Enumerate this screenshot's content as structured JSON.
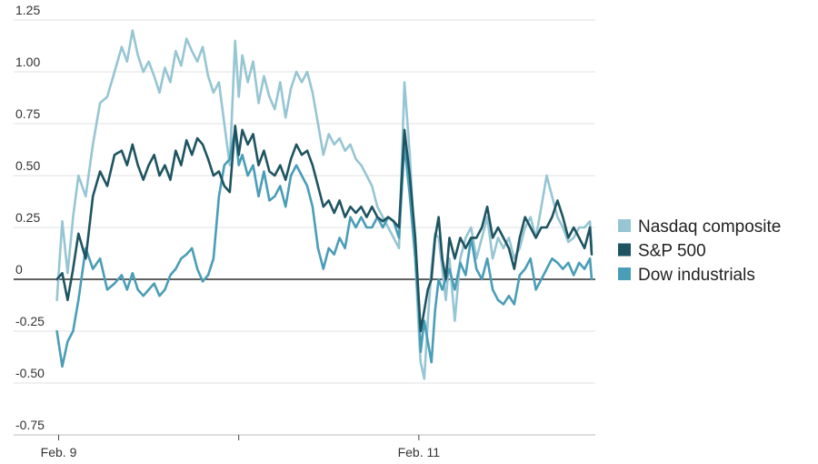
{
  "chart_data": {
    "type": "line",
    "ylim": [
      -0.75,
      1.25
    ],
    "y_ticks": [
      {
        "value": 1.25,
        "label": "1.25"
      },
      {
        "value": 1.0,
        "label": "1.00"
      },
      {
        "value": 0.75,
        "label": "0.75"
      },
      {
        "value": 0.5,
        "label": "0.50"
      },
      {
        "value": 0.25,
        "label": "0.25"
      },
      {
        "value": 0,
        "label": "0"
      },
      {
        "value": -0.25,
        "label": "-0.25"
      },
      {
        "value": -0.5,
        "label": "-0.50"
      },
      {
        "value": -0.75,
        "label": "-0.75"
      }
    ],
    "x_ticks": [
      {
        "value": 0,
        "label": "Feb. 9"
      },
      {
        "value": 1,
        "label": ""
      },
      {
        "value": 2,
        "label": "Feb. 11"
      }
    ],
    "xlim": [
      -0.25,
      2.98
    ],
    "grid": true,
    "legend_position": "right",
    "series": [
      {
        "name": "Nasdaq composite",
        "color": "#96c5d3",
        "x": [
          -0.01,
          0.02,
          0.05,
          0.08,
          0.11,
          0.15,
          0.19,
          0.23,
          0.27,
          0.31,
          0.35,
          0.38,
          0.41,
          0.44,
          0.47,
          0.5,
          0.53,
          0.56,
          0.59,
          0.62,
          0.65,
          0.68,
          0.71,
          0.74,
          0.77,
          0.8,
          0.83,
          0.86,
          0.89,
          0.92,
          0.95,
          0.98,
          1.0,
          1.02,
          1.05,
          1.08,
          1.11,
          1.14,
          1.17,
          1.2,
          1.23,
          1.26,
          1.29,
          1.32,
          1.35,
          1.38,
          1.41,
          1.44,
          1.47,
          1.5,
          1.53,
          1.56,
          1.59,
          1.62,
          1.65,
          1.68,
          1.71,
          1.74,
          1.77,
          1.8,
          1.83,
          1.86,
          1.89,
          1.92,
          1.95,
          1.98,
          2.0,
          2.01,
          2.03,
          2.05,
          2.07,
          2.09,
          2.11,
          2.13,
          2.15,
          2.17,
          2.2,
          2.23,
          2.26,
          2.29,
          2.32,
          2.35,
          2.38,
          2.41,
          2.44,
          2.47,
          2.5,
          2.53,
          2.56,
          2.59,
          2.62,
          2.65,
          2.68,
          2.71,
          2.74,
          2.77,
          2.8,
          2.83,
          2.86,
          2.89,
          2.92,
          2.95,
          2.96
        ],
        "y": [
          -0.1,
          0.28,
          0.03,
          0.3,
          0.5,
          0.4,
          0.65,
          0.85,
          0.88,
          1.0,
          1.12,
          1.05,
          1.2,
          1.08,
          1.0,
          1.05,
          0.98,
          0.9,
          1.02,
          0.95,
          1.1,
          1.03,
          1.16,
          1.1,
          1.05,
          1.12,
          0.98,
          0.9,
          0.95,
          0.75,
          0.55,
          1.15,
          0.88,
          1.08,
          0.95,
          1.05,
          0.85,
          0.98,
          0.88,
          0.82,
          0.95,
          0.78,
          0.92,
          1.0,
          0.95,
          1.0,
          0.9,
          0.75,
          0.6,
          0.7,
          0.65,
          0.68,
          0.62,
          0.65,
          0.58,
          0.55,
          0.5,
          0.45,
          0.35,
          0.3,
          0.25,
          0.2,
          0.15,
          0.95,
          0.6,
          0.1,
          -0.25,
          -0.4,
          -0.48,
          -0.2,
          0.05,
          0.22,
          0.2,
          0.05,
          -0.1,
          0.1,
          -0.2,
          0.1,
          0.2,
          0.25,
          0.1,
          0.2,
          0.3,
          0.1,
          0.2,
          0.15,
          0.2,
          0.1,
          0.15,
          0.25,
          0.3,
          0.2,
          0.35,
          0.5,
          0.4,
          0.3,
          0.25,
          0.18,
          0.2,
          0.25,
          0.25,
          0.28,
          0.15
        ]
      },
      {
        "name": "S&P 500",
        "color": "#1e5461",
        "x": [
          -0.01,
          0.02,
          0.05,
          0.08,
          0.11,
          0.15,
          0.19,
          0.23,
          0.27,
          0.31,
          0.35,
          0.38,
          0.41,
          0.44,
          0.47,
          0.5,
          0.53,
          0.56,
          0.59,
          0.62,
          0.65,
          0.68,
          0.71,
          0.74,
          0.77,
          0.8,
          0.83,
          0.86,
          0.89,
          0.92,
          0.95,
          0.98,
          1.0,
          1.02,
          1.05,
          1.08,
          1.11,
          1.14,
          1.17,
          1.2,
          1.23,
          1.26,
          1.29,
          1.32,
          1.35,
          1.38,
          1.41,
          1.44,
          1.47,
          1.5,
          1.53,
          1.56,
          1.59,
          1.62,
          1.65,
          1.68,
          1.71,
          1.74,
          1.77,
          1.8,
          1.83,
          1.86,
          1.89,
          1.92,
          1.95,
          1.98,
          2.0,
          2.01,
          2.03,
          2.05,
          2.07,
          2.09,
          2.11,
          2.13,
          2.15,
          2.17,
          2.2,
          2.23,
          2.26,
          2.29,
          2.32,
          2.35,
          2.38,
          2.41,
          2.44,
          2.47,
          2.5,
          2.53,
          2.56,
          2.59,
          2.62,
          2.65,
          2.68,
          2.71,
          2.74,
          2.77,
          2.8,
          2.83,
          2.86,
          2.89,
          2.92,
          2.95,
          2.96
        ],
        "y": [
          0.0,
          0.03,
          -0.1,
          0.05,
          0.22,
          0.1,
          0.4,
          0.52,
          0.45,
          0.6,
          0.62,
          0.55,
          0.65,
          0.55,
          0.48,
          0.55,
          0.6,
          0.5,
          0.55,
          0.48,
          0.62,
          0.55,
          0.67,
          0.6,
          0.68,
          0.65,
          0.58,
          0.5,
          0.52,
          0.45,
          0.42,
          0.74,
          0.6,
          0.72,
          0.65,
          0.7,
          0.55,
          0.62,
          0.52,
          0.5,
          0.55,
          0.48,
          0.58,
          0.65,
          0.6,
          0.62,
          0.55,
          0.45,
          0.35,
          0.38,
          0.32,
          0.38,
          0.3,
          0.35,
          0.32,
          0.35,
          0.3,
          0.35,
          0.3,
          0.28,
          0.3,
          0.28,
          0.25,
          0.72,
          0.5,
          0.2,
          -0.1,
          -0.25,
          -0.15,
          -0.05,
          0.0,
          0.2,
          0.3,
          0.1,
          0.0,
          0.2,
          0.1,
          0.2,
          0.15,
          0.2,
          0.2,
          0.25,
          0.35,
          0.2,
          0.25,
          0.2,
          0.15,
          0.05,
          0.2,
          0.3,
          0.25,
          0.2,
          0.25,
          0.25,
          0.3,
          0.38,
          0.3,
          0.2,
          0.25,
          0.2,
          0.15,
          0.25,
          0.12
        ]
      },
      {
        "name": "Dow industrials",
        "color": "#4a9db7",
        "x": [
          -0.01,
          0.02,
          0.05,
          0.08,
          0.11,
          0.15,
          0.19,
          0.23,
          0.27,
          0.31,
          0.35,
          0.38,
          0.41,
          0.44,
          0.47,
          0.5,
          0.53,
          0.56,
          0.59,
          0.62,
          0.65,
          0.68,
          0.71,
          0.74,
          0.77,
          0.8,
          0.83,
          0.86,
          0.89,
          0.92,
          0.95,
          0.98,
          1.0,
          1.02,
          1.05,
          1.08,
          1.11,
          1.14,
          1.17,
          1.2,
          1.23,
          1.26,
          1.29,
          1.32,
          1.35,
          1.38,
          1.41,
          1.44,
          1.47,
          1.5,
          1.53,
          1.56,
          1.59,
          1.62,
          1.65,
          1.68,
          1.71,
          1.74,
          1.77,
          1.8,
          1.83,
          1.86,
          1.89,
          1.92,
          1.95,
          1.98,
          2.0,
          2.01,
          2.03,
          2.05,
          2.07,
          2.09,
          2.11,
          2.13,
          2.15,
          2.17,
          2.2,
          2.23,
          2.26,
          2.29,
          2.32,
          2.35,
          2.38,
          2.41,
          2.44,
          2.47,
          2.5,
          2.53,
          2.56,
          2.59,
          2.62,
          2.65,
          2.68,
          2.71,
          2.74,
          2.77,
          2.8,
          2.83,
          2.86,
          2.89,
          2.92,
          2.95,
          2.96
        ],
        "y": [
          -0.25,
          -0.42,
          -0.3,
          -0.25,
          -0.1,
          0.15,
          0.05,
          0.1,
          -0.05,
          -0.02,
          0.02,
          -0.05,
          0.03,
          -0.05,
          -0.08,
          -0.05,
          -0.02,
          -0.08,
          -0.05,
          0.02,
          0.05,
          0.1,
          0.12,
          0.15,
          0.05,
          -0.01,
          0.02,
          0.1,
          0.4,
          0.55,
          0.58,
          0.72,
          0.55,
          0.6,
          0.5,
          0.55,
          0.4,
          0.52,
          0.38,
          0.4,
          0.45,
          0.35,
          0.5,
          0.55,
          0.5,
          0.45,
          0.35,
          0.15,
          0.05,
          0.15,
          0.12,
          0.2,
          0.15,
          0.3,
          0.25,
          0.3,
          0.25,
          0.25,
          0.3,
          0.25,
          0.3,
          0.28,
          0.2,
          0.65,
          0.4,
          0.1,
          -0.15,
          -0.35,
          -0.2,
          -0.3,
          -0.4,
          -0.15,
          0.0,
          -0.05,
          0.0,
          0.05,
          -0.05,
          0.08,
          0.02,
          0.2,
          0.05,
          0.0,
          0.1,
          -0.05,
          -0.1,
          -0.12,
          -0.08,
          -0.12,
          0.02,
          0.05,
          0.1,
          -0.05,
          0.0,
          0.05,
          0.1,
          0.08,
          0.05,
          0.08,
          0.02,
          0.08,
          0.05,
          0.1,
          0.0
        ]
      }
    ]
  }
}
